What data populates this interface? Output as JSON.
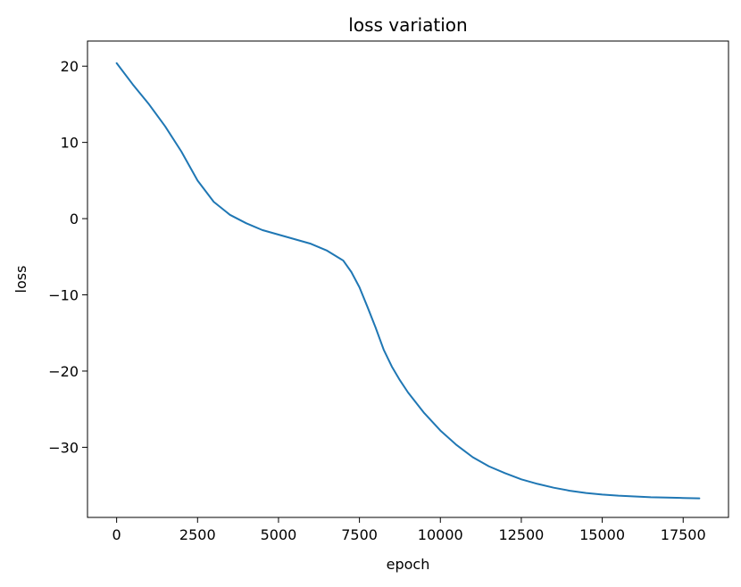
{
  "chart_data": {
    "type": "line",
    "title": "loss variation",
    "xlabel": "epoch",
    "ylabel": "loss",
    "xlim": [
      -900,
      18900
    ],
    "ylim": [
      -39.2,
      23.3
    ],
    "grid": false,
    "xticks": [
      0,
      2500,
      5000,
      7500,
      10000,
      12500,
      15000,
      17500
    ],
    "yticks": [
      20,
      10,
      0,
      -10,
      -20,
      -30
    ],
    "xtick_labels": [
      "0",
      "2500",
      "5000",
      "7500",
      "10000",
      "12500",
      "15000",
      "17500"
    ],
    "ytick_labels": [
      "20",
      "10",
      "0",
      "−10",
      "−20",
      "−30"
    ],
    "line_color": "#1f77b4",
    "series": [
      {
        "x": [
          0,
          500,
          1000,
          1500,
          2000,
          2500,
          3000,
          3500,
          4000,
          4500,
          5000,
          5500,
          6000,
          6500,
          7000,
          7250,
          7500,
          7750,
          8000,
          8250,
          8500,
          8750,
          9000,
          9500,
          10000,
          10500,
          11000,
          11500,
          12000,
          12500,
          13000,
          13500,
          14000,
          14500,
          15000,
          15500,
          16000,
          16500,
          17000,
          17500,
          18000
        ],
        "y": [
          20.4,
          17.6,
          15.0,
          12.1,
          8.8,
          5.0,
          2.2,
          0.5,
          -0.6,
          -1.5,
          -2.1,
          -2.7,
          -3.3,
          -4.2,
          -5.5,
          -7.0,
          -9.0,
          -11.6,
          -14.3,
          -17.2,
          -19.4,
          -21.2,
          -22.8,
          -25.5,
          -27.8,
          -29.7,
          -31.3,
          -32.5,
          -33.4,
          -34.2,
          -34.8,
          -35.3,
          -35.7,
          -36.0,
          -36.2,
          -36.35,
          -36.45,
          -36.55,
          -36.6,
          -36.65,
          -36.7
        ]
      }
    ]
  }
}
